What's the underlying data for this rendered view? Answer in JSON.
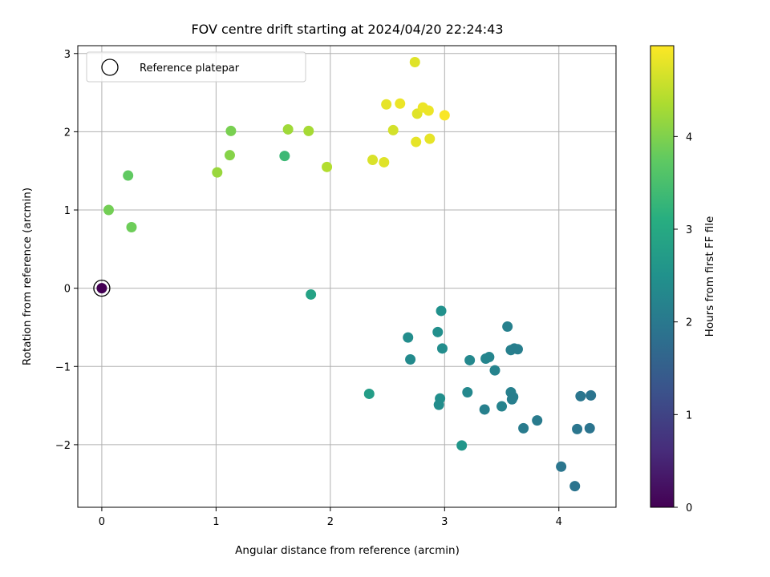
{
  "chart_data": {
    "type": "scatter",
    "title": "FOV centre drift starting at 2024/04/20 22:24:43",
    "xlabel": "Angular distance from reference (arcmin)",
    "ylabel": "Rotation from reference (arcmin)",
    "xlim": [
      -0.21,
      4.5
    ],
    "ylim": [
      -2.8,
      3.1
    ],
    "xticks": [
      0,
      1,
      2,
      3,
      4
    ],
    "yticks": [
      -2,
      -1,
      0,
      1,
      2,
      3
    ],
    "xtick_labels": [
      "0",
      "1",
      "2",
      "3",
      "4"
    ],
    "ytick_labels": [
      "−2",
      "−1",
      "0",
      "1",
      "2",
      "3"
    ],
    "grid": true,
    "legend": {
      "position": "top-left",
      "label": "Reference platepar"
    },
    "colorbar": {
      "label": "Hours from first FF file",
      "min": 0,
      "max": 4.98,
      "ticks": [
        0,
        1,
        2,
        3,
        4
      ],
      "tick_labels": [
        "0",
        "1",
        "2",
        "3",
        "4"
      ],
      "colormap": "viridis"
    },
    "reference_point": {
      "x": 0,
      "y": 0
    },
    "points": [
      {
        "x": 0.0,
        "y": 0.0,
        "c": 0.0
      },
      {
        "x": 1.83,
        "y": -0.08,
        "c": 2.85
      },
      {
        "x": 2.34,
        "y": -1.35,
        "c": 2.75
      },
      {
        "x": 3.15,
        "y": -2.01,
        "c": 2.6
      },
      {
        "x": 2.97,
        "y": -0.29,
        "c": 2.5
      },
      {
        "x": 2.94,
        "y": -0.56,
        "c": 2.45
      },
      {
        "x": 2.68,
        "y": -0.63,
        "c": 2.4
      },
      {
        "x": 2.98,
        "y": -0.77,
        "c": 2.4
      },
      {
        "x": 2.7,
        "y": -0.91,
        "c": 2.35
      },
      {
        "x": 2.96,
        "y": -1.41,
        "c": 2.45
      },
      {
        "x": 2.95,
        "y": -1.49,
        "c": 2.4
      },
      {
        "x": 3.22,
        "y": -0.92,
        "c": 2.3
      },
      {
        "x": 3.2,
        "y": -1.33,
        "c": 2.3
      },
      {
        "x": 3.36,
        "y": -0.9,
        "c": 2.25
      },
      {
        "x": 3.39,
        "y": -0.88,
        "c": 2.25
      },
      {
        "x": 3.44,
        "y": -1.05,
        "c": 2.2
      },
      {
        "x": 3.35,
        "y": -1.55,
        "c": 2.15
      },
      {
        "x": 3.5,
        "y": -1.51,
        "c": 2.2
      },
      {
        "x": 3.55,
        "y": -0.49,
        "c": 2.15
      },
      {
        "x": 3.58,
        "y": -0.79,
        "c": 2.15
      },
      {
        "x": 3.61,
        "y": -0.77,
        "c": 2.1
      },
      {
        "x": 3.64,
        "y": -0.78,
        "c": 2.1
      },
      {
        "x": 3.58,
        "y": -1.33,
        "c": 2.15
      },
      {
        "x": 3.6,
        "y": -1.39,
        "c": 2.1
      },
      {
        "x": 3.59,
        "y": -1.42,
        "c": 2.1
      },
      {
        "x": 3.69,
        "y": -1.79,
        "c": 2.05
      },
      {
        "x": 3.81,
        "y": -1.69,
        "c": 2.05
      },
      {
        "x": 4.02,
        "y": -2.28,
        "c": 1.95
      },
      {
        "x": 4.14,
        "y": -2.53,
        "c": 1.9
      },
      {
        "x": 4.16,
        "y": -1.8,
        "c": 1.95
      },
      {
        "x": 4.19,
        "y": -1.38,
        "c": 1.95
      },
      {
        "x": 4.27,
        "y": -1.79,
        "c": 1.9
      },
      {
        "x": 4.28,
        "y": -1.37,
        "c": 1.9
      },
      {
        "x": 0.06,
        "y": 1.0,
        "c": 3.9
      },
      {
        "x": 0.26,
        "y": 0.78,
        "c": 3.85
      },
      {
        "x": 0.23,
        "y": 1.44,
        "c": 3.75
      },
      {
        "x": 1.01,
        "y": 1.48,
        "c": 4.2
      },
      {
        "x": 1.12,
        "y": 1.7,
        "c": 4.05
      },
      {
        "x": 1.13,
        "y": 2.01,
        "c": 3.95
      },
      {
        "x": 1.6,
        "y": 1.69,
        "c": 3.35
      },
      {
        "x": 1.63,
        "y": 2.03,
        "c": 4.25
      },
      {
        "x": 1.81,
        "y": 2.01,
        "c": 4.3
      },
      {
        "x": 1.97,
        "y": 1.55,
        "c": 4.4
      },
      {
        "x": 2.37,
        "y": 1.64,
        "c": 4.7
      },
      {
        "x": 2.47,
        "y": 1.61,
        "c": 4.75
      },
      {
        "x": 2.49,
        "y": 2.35,
        "c": 4.8
      },
      {
        "x": 2.55,
        "y": 2.02,
        "c": 4.65
      },
      {
        "x": 2.61,
        "y": 2.36,
        "c": 4.85
      },
      {
        "x": 2.74,
        "y": 2.89,
        "c": 4.75
      },
      {
        "x": 2.75,
        "y": 1.87,
        "c": 4.8
      },
      {
        "x": 2.76,
        "y": 2.23,
        "c": 4.75
      },
      {
        "x": 2.81,
        "y": 2.31,
        "c": 4.85
      },
      {
        "x": 2.86,
        "y": 2.27,
        "c": 4.85
      },
      {
        "x": 2.87,
        "y": 1.91,
        "c": 4.8
      },
      {
        "x": 3.0,
        "y": 2.21,
        "c": 4.95
      }
    ]
  }
}
